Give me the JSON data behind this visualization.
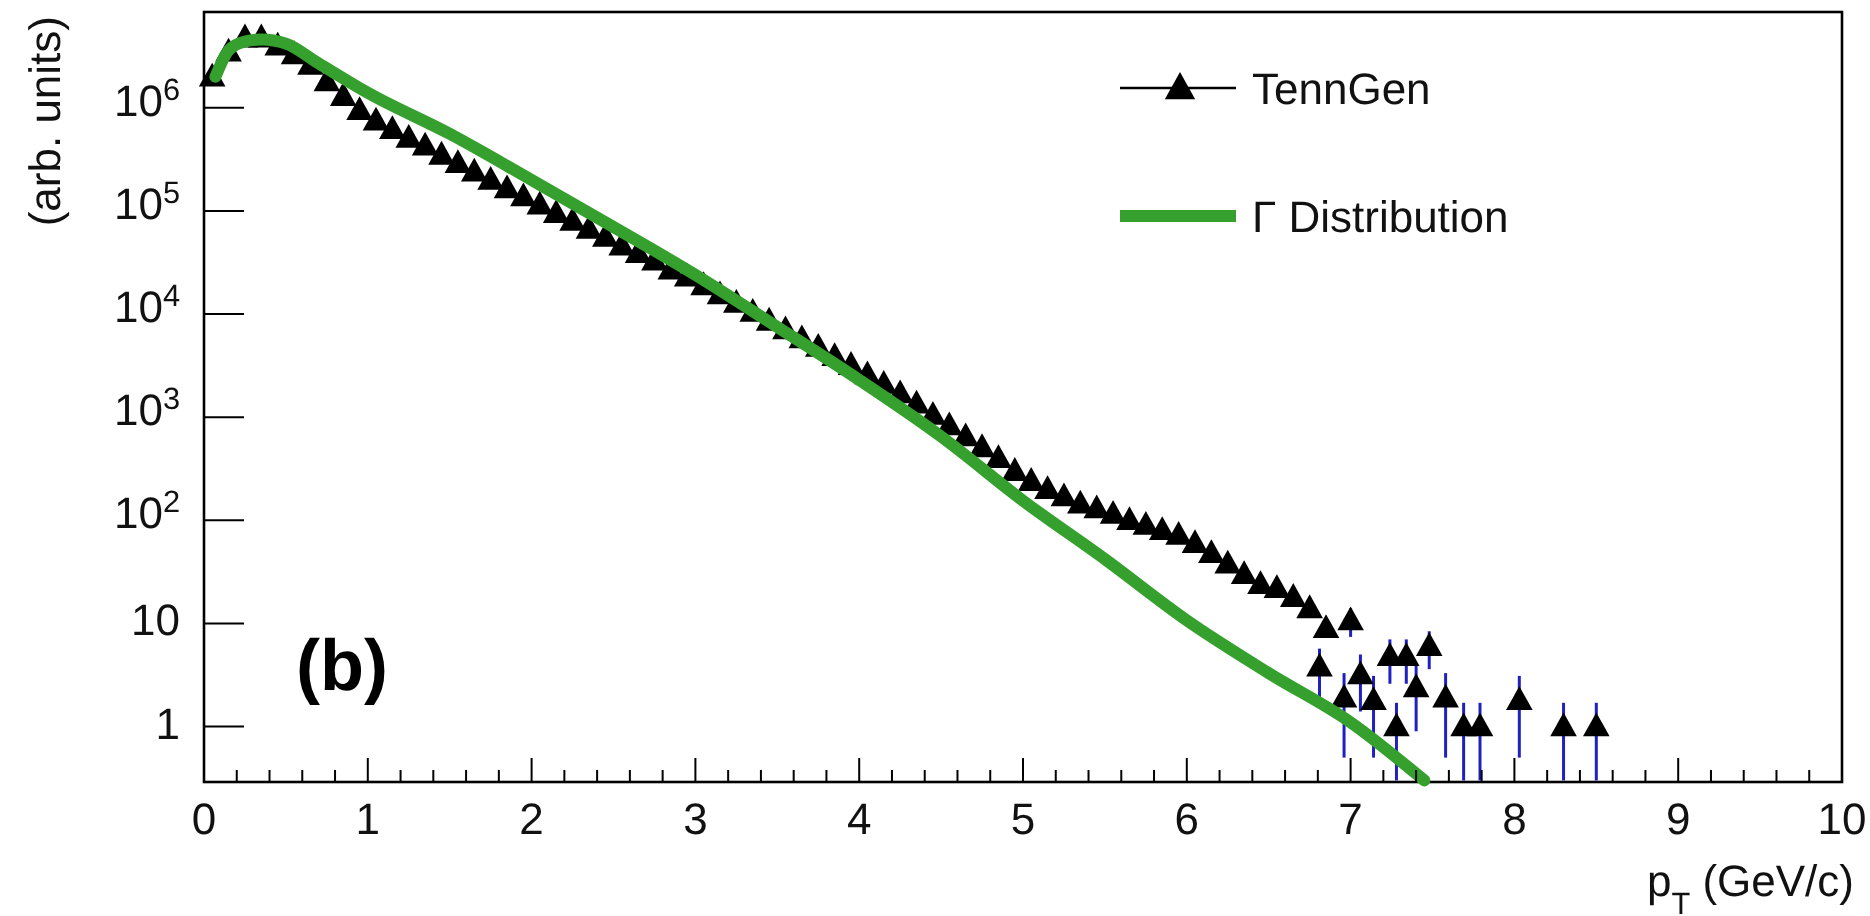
{
  "chart_data": {
    "type": "scatter",
    "xlabel": "p$_{T}$ (GeV/c)",
    "ylabel": "(arb. units)",
    "annotations": [
      "(b)"
    ],
    "log": "y",
    "grid": false,
    "legend": "top right",
    "xlim": [
      0,
      10
    ],
    "xticks": [
      0,
      1,
      2,
      3,
      4,
      5,
      6,
      7,
      8,
      9,
      10
    ],
    "ylim": [
      0.29,
      8500000
    ],
    "yticks": [
      1,
      10,
      {
        "value": 100,
        "label": "10$^{2}$"
      },
      {
        "value": 1000,
        "label": "10$^{3}$"
      },
      {
        "value": 10000,
        "label": "10$^{4}$"
      },
      {
        "value": 100000,
        "label": "10$^{5}$"
      },
      {
        "value": 1000000,
        "label": "10$^{6}$"
      }
    ],
    "series": [
      {
        "name": "TennGen",
        "type": "scatter",
        "color": "#000000",
        "marker": "triangle",
        "x": [
          0.05,
          0.15,
          0.25,
          0.35,
          0.45,
          0.55,
          0.65,
          0.75,
          0.85,
          0.95,
          1.05,
          1.15,
          1.25,
          1.35,
          1.45,
          1.55,
          1.65,
          1.75,
          1.85,
          1.95,
          2.05,
          2.15,
          2.25,
          2.35,
          2.45,
          2.55,
          2.65,
          2.75,
          2.85,
          2.95,
          3.05,
          3.15,
          3.25,
          3.35,
          3.45,
          3.55,
          3.65,
          3.75,
          3.85,
          3.95,
          4.05,
          4.15,
          4.25,
          4.35,
          4.45,
          4.55,
          4.65,
          4.75,
          4.85,
          4.95,
          5.05,
          5.15,
          5.25,
          5.35,
          5.45,
          5.55,
          5.65,
          5.75,
          5.85,
          5.95,
          6.05,
          6.15,
          6.25,
          6.35,
          6.45,
          6.55,
          6.65,
          6.75,
          6.81,
          6.85,
          6.96,
          7.0,
          7.06,
          7.14,
          7.24,
          7.28,
          7.34,
          7.4,
          7.48,
          7.58,
          7.69,
          7.79,
          8.03,
          8.3,
          8.5
        ],
        "values": [
          2000000,
          3500000,
          4800000,
          4800000,
          4000000,
          3300000,
          2600000,
          1800000,
          1300000,
          950000,
          750000,
          620000,
          510000,
          430000,
          350000,
          290000,
          240000,
          200000,
          165000,
          138000,
          115000,
          95000,
          80000,
          67000,
          56000,
          46000,
          39000,
          33000,
          27000,
          23000,
          19000,
          15500,
          12800,
          10500,
          8600,
          7100,
          5800,
          4800,
          3900,
          3200,
          2600,
          2100,
          1700,
          1350,
          1050,
          830,
          650,
          510,
          400,
          300,
          240,
          200,
          170,
          145,
          130,
          115,
          100,
          90,
          80,
          72,
          60,
          48,
          38,
          30,
          24,
          22,
          18,
          14,
          3.8,
          9,
          1.9,
          10.7,
          3.2,
          1.8,
          4.8,
          1,
          4.8,
          2.4,
          6,
          1.9,
          1,
          1,
          1.8,
          1,
          1
        ],
        "errors": [
          null,
          null,
          null,
          null,
          null,
          null,
          null,
          null,
          null,
          null,
          null,
          null,
          null,
          null,
          null,
          null,
          null,
          null,
          null,
          null,
          null,
          null,
          null,
          null,
          null,
          null,
          null,
          null,
          null,
          null,
          null,
          null,
          null,
          null,
          null,
          null,
          null,
          null,
          null,
          null,
          null,
          null,
          null,
          null,
          null,
          null,
          null,
          null,
          null,
          null,
          null,
          null,
          null,
          null,
          null,
          null,
          null,
          null,
          null,
          null,
          null,
          null,
          null,
          null,
          null,
          null,
          null,
          null,
          1.9,
          null,
          1.4,
          3.3,
          1.8,
          1.3,
          2.2,
          0.7,
          2.2,
          1.5,
          2.4,
          1.4,
          0.7,
          0.7,
          1.3,
          0.7,
          0.7
        ]
      },
      {
        "name": "Γ Distribution",
        "type": "line",
        "color": "#35a02e",
        "marker": "none",
        "x": [
          0.07,
          0.15,
          0.25,
          0.35,
          0.5,
          0.7,
          1.0,
          1.5,
          2.0,
          2.5,
          3.0,
          3.5,
          4.0,
          4.5,
          5.0,
          5.5,
          6.0,
          6.5,
          7.0,
          7.45
        ],
        "values": [
          2000000,
          3600000,
          4400000,
          4600000,
          4200000,
          2700000,
          1400000,
          560000,
          200000,
          70000,
          24000,
          7500,
          2300,
          650,
          155,
          42,
          10.7,
          3.3,
          1.1,
          0.3
        ]
      }
    ]
  }
}
